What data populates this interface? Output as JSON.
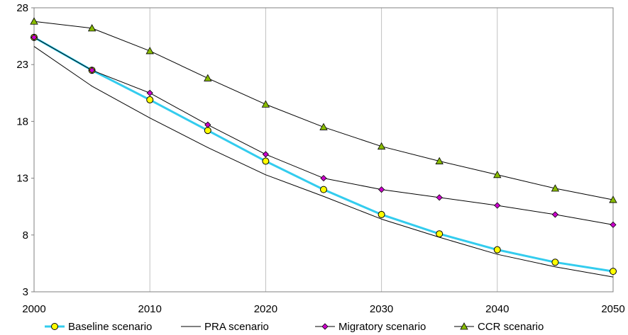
{
  "chart_data": {
    "type": "line",
    "title": "",
    "xlabel": "",
    "ylabel": "",
    "x": [
      2000,
      2005,
      2010,
      2015,
      2020,
      2025,
      2030,
      2035,
      2040,
      2045,
      2050
    ],
    "xlim": [
      2000,
      2050
    ],
    "ylim": [
      3,
      28
    ],
    "x_ticks": [
      "2000",
      "2010",
      "2020",
      "2030",
      "2040",
      "2050"
    ],
    "y_ticks": [
      "3",
      "8",
      "13",
      "18",
      "23",
      "28"
    ],
    "grid": "vertical",
    "legend_position": "bottom",
    "series": [
      {
        "name": "Baseline scenario",
        "color": "#33ccee",
        "marker": "circle",
        "marker_color": "#ffff00",
        "values": [
          25.4,
          22.5,
          19.9,
          17.2,
          14.5,
          12.0,
          9.8,
          8.1,
          6.7,
          5.6,
          4.8
        ]
      },
      {
        "name": "PRA scenario",
        "color": "#000000",
        "marker": "none",
        "values": [
          24.6,
          21.1,
          18.3,
          15.7,
          13.3,
          11.4,
          9.4,
          7.8,
          6.3,
          5.2,
          4.3
        ]
      },
      {
        "name": "Migratory scenario",
        "color": "#000000",
        "marker": "diamond",
        "marker_color": "#cc00cc",
        "values": [
          25.4,
          22.5,
          20.5,
          17.7,
          15.1,
          13.0,
          12.0,
          11.3,
          10.6,
          9.8,
          8.9
        ]
      },
      {
        "name": "CCR scenario",
        "color": "#000000",
        "marker": "triangle",
        "marker_color": "#88bb00",
        "values": [
          26.8,
          26.2,
          24.2,
          21.8,
          19.5,
          17.5,
          15.8,
          14.5,
          13.3,
          12.1,
          11.1
        ]
      }
    ]
  }
}
